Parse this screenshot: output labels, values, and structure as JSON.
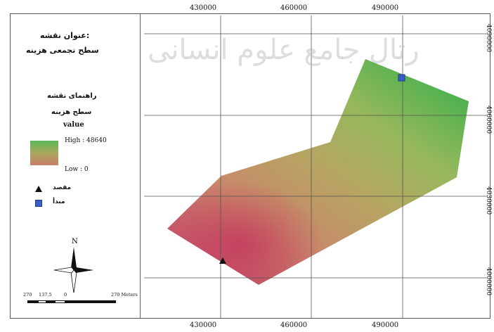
{
  "map_title_label": "عنوان نقشه:",
  "map_title": "سطح تجمعی هزینه",
  "legend": {
    "heading": "راهنمای نقشه",
    "layer_name": "سطح هزینه",
    "field": "value",
    "ramp_high": "High : 48640",
    "ramp_low": "Low : 0",
    "ramp_colors": [
      "#5cb85c",
      "#a9a85c",
      "#c97d6c"
    ],
    "destination_label": "مقصد",
    "origin_label": "مبدأ"
  },
  "x_ticks": [
    "430000",
    "460000",
    "490000"
  ],
  "y_ticks": [
    "4090000",
    "4060000",
    "4030000",
    "4000000"
  ],
  "scale_bar": {
    "labels": [
      "270",
      "137.5",
      "0",
      "270 Meters"
    ]
  },
  "north_label": "N",
  "watermark": "رتال جامع علوم انسانی"
}
